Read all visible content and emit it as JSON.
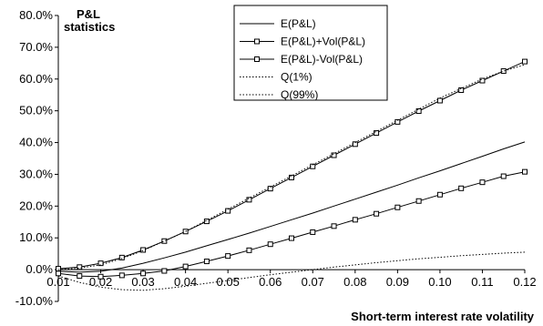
{
  "chart_data": {
    "type": "line",
    "title": "",
    "xlabel": "Short-term interest rate volatility",
    "ylabel_lines": [
      "P&L",
      "statistics"
    ],
    "xlim": [
      0.01,
      0.12
    ],
    "ylim": [
      -0.1,
      0.8
    ],
    "x_ticks": [
      0.01,
      0.02,
      0.03,
      0.04,
      0.05,
      0.06,
      0.07,
      0.08,
      0.09,
      0.1,
      0.11,
      0.12
    ],
    "x_tick_labels": [
      "0.01",
      "0.02",
      "0.03",
      "0.04",
      "0.05",
      "0.06",
      "0.07",
      "0.08",
      "0.09",
      "0.10",
      "0.11",
      "0.12"
    ],
    "y_ticks": [
      -0.1,
      0.0,
      0.1,
      0.2,
      0.3,
      0.4,
      0.5,
      0.6,
      0.7,
      0.8
    ],
    "y_tick_labels": [
      "-10.0%",
      "0.0%",
      "10.0%",
      "20.0%",
      "30.0%",
      "40.0%",
      "50.0%",
      "60.0%",
      "70.0%",
      "80.0%"
    ],
    "grid": false,
    "legend_position": "top-center",
    "x": [
      0.01,
      0.015,
      0.02,
      0.025,
      0.03,
      0.035,
      0.04,
      0.045,
      0.05,
      0.055,
      0.06,
      0.065,
      0.07,
      0.075,
      0.08,
      0.085,
      0.09,
      0.095,
      0.1,
      0.105,
      0.11,
      0.115,
      0.12
    ],
    "series": [
      {
        "name": "E(P&L)",
        "style": "solid",
        "markers": false,
        "values": [
          -0.005,
          -0.008,
          -0.005,
          0.005,
          0.02,
          0.037,
          0.055,
          0.075,
          0.095,
          0.115,
          0.136,
          0.157,
          0.178,
          0.2,
          0.222,
          0.244,
          0.266,
          0.289,
          0.311,
          0.334,
          0.357,
          0.38,
          0.402
        ]
      },
      {
        "name": "E(P&L)+Vol(P&L)",
        "style": "solid",
        "markers": true,
        "values": [
          0.003,
          0.008,
          0.02,
          0.038,
          0.062,
          0.09,
          0.12,
          0.152,
          0.185,
          0.22,
          0.255,
          0.29,
          0.325,
          0.36,
          0.395,
          0.43,
          0.465,
          0.499,
          0.532,
          0.565,
          0.595,
          0.625,
          0.655
        ]
      },
      {
        "name": "E(P&L)-Vol(P&L)",
        "style": "solid",
        "markers": true,
        "values": [
          -0.012,
          -0.02,
          -0.022,
          -0.018,
          -0.012,
          -0.004,
          0.01,
          0.026,
          0.043,
          0.061,
          0.08,
          0.099,
          0.118,
          0.137,
          0.157,
          0.176,
          0.196,
          0.216,
          0.236,
          0.256,
          0.275,
          0.294,
          0.308
        ]
      },
      {
        "name": "Q(1%)",
        "style": "dotted",
        "markers": false,
        "values": [
          -0.02,
          -0.04,
          -0.055,
          -0.063,
          -0.065,
          -0.06,
          -0.052,
          -0.043,
          -0.034,
          -0.025,
          -0.016,
          -0.008,
          0.0,
          0.008,
          0.015,
          0.022,
          0.028,
          0.034,
          0.039,
          0.044,
          0.048,
          0.052,
          0.055
        ]
      },
      {
        "name": "Q(99%)",
        "style": "dotted",
        "markers": false,
        "values": [
          0.0,
          0.005,
          0.015,
          0.035,
          0.06,
          0.09,
          0.12,
          0.155,
          0.19,
          0.225,
          0.26,
          0.295,
          0.33,
          0.365,
          0.4,
          0.435,
          0.47,
          0.505,
          0.54,
          0.57,
          0.6,
          0.625,
          0.645
        ]
      }
    ]
  }
}
